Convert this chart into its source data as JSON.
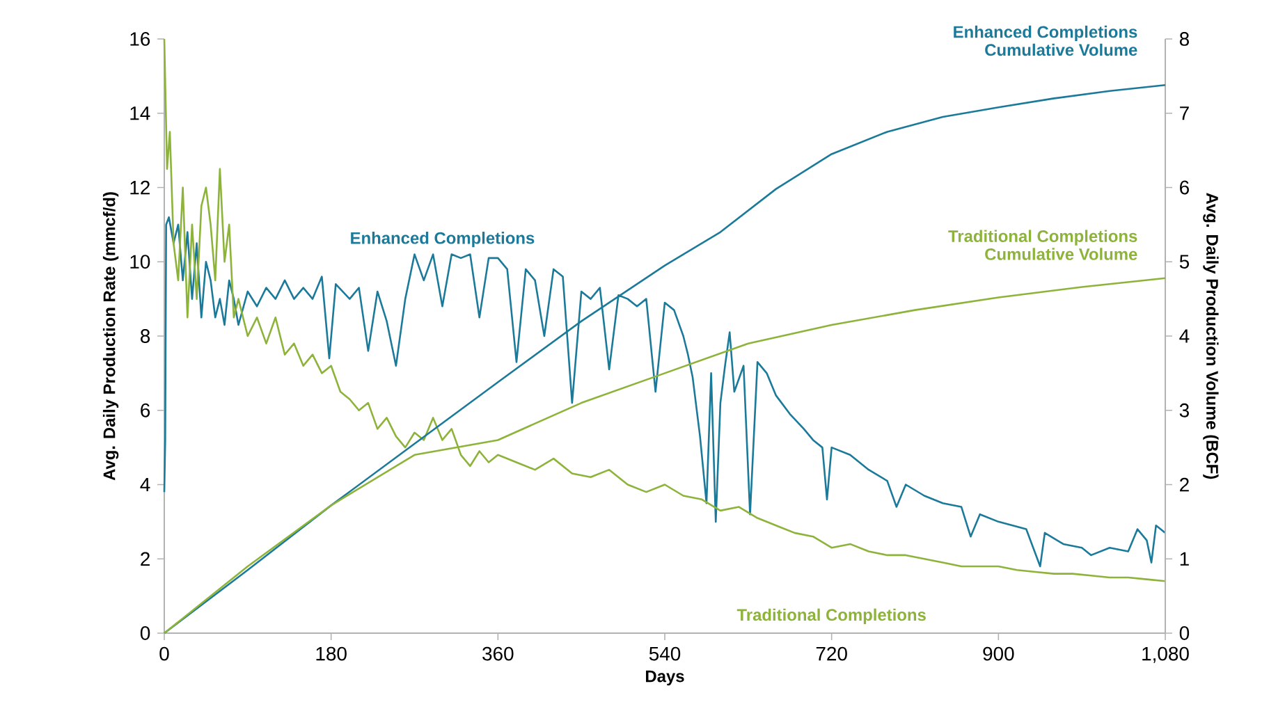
{
  "chart_data": {
    "type": "line",
    "xlabel": "Days",
    "ylabel": "Avg. Daily Production Rate (mmcf/d)",
    "y2label": "Avg. Daily Production Volume (BCF)",
    "xlim": [
      0,
      1080
    ],
    "xticks": [
      0,
      180,
      360,
      540,
      720,
      {
        "value": 1080,
        "label": "1,080"
      },
      900
    ],
    "ylim": [
      0,
      16
    ],
    "yticks": [
      0,
      2,
      4,
      6,
      8,
      10,
      12,
      14,
      16
    ],
    "y2lim": [
      0,
      8
    ],
    "y2ticks": [
      0,
      1,
      2,
      3,
      4,
      5,
      6,
      7,
      8
    ],
    "grid": false,
    "legend": false,
    "marker": "none",
    "line_style": "solid",
    "series": [
      {
        "name": "Enhanced Completions",
        "color": "#1b7a9a",
        "x": [
          0,
          1,
          2,
          5,
          10,
          15,
          20,
          25,
          30,
          35,
          40,
          45,
          50,
          55,
          60,
          65,
          70,
          75,
          80,
          90,
          100,
          110,
          120,
          130,
          140,
          150,
          160,
          170,
          178,
          185,
          200,
          210,
          220,
          230,
          240,
          250,
          260,
          270,
          280,
          290,
          300,
          310,
          320,
          330,
          340,
          350,
          360,
          370,
          380,
          390,
          400,
          410,
          420,
          430,
          440,
          450,
          460,
          470,
          480,
          490,
          500,
          510,
          520,
          530,
          540,
          550,
          560,
          565,
          570,
          578,
          585,
          590,
          595,
          600,
          605,
          610,
          615,
          625,
          632,
          640,
          650,
          660,
          675,
          690,
          700,
          710,
          715,
          720,
          740,
          760,
          780,
          790,
          800,
          820,
          840,
          860,
          870,
          880,
          900,
          930,
          945,
          950,
          970,
          990,
          1000,
          1020,
          1040,
          1050,
          1060,
          1065,
          1070,
          1080
        ],
        "values": [
          3.8,
          5.2,
          11,
          11.2,
          10.5,
          11,
          9.5,
          10.8,
          9,
          10.5,
          8.5,
          10,
          9.5,
          8.5,
          9,
          8.3,
          9.5,
          9,
          8.3,
          9.2,
          8.8,
          9.3,
          9,
          9.5,
          9,
          9.3,
          9,
          9.6,
          7.4,
          9.4,
          9,
          9.3,
          7.6,
          9.2,
          8.4,
          7.2,
          9,
          10.2,
          9.5,
          10.2,
          8.8,
          10.2,
          10.1,
          10.2,
          8.5,
          10.1,
          10.1,
          9.8,
          7.3,
          9.8,
          9.5,
          8,
          9.8,
          9.6,
          6.2,
          9.2,
          9,
          9.3,
          7.1,
          9.1,
          9,
          8.8,
          9,
          6.5,
          8.9,
          8.7,
          8,
          7.5,
          6.9,
          5.3,
          3.5,
          7,
          3,
          6.2,
          7.2,
          8.1,
          6.5,
          7.2,
          3.2,
          7.3,
          7,
          6.4,
          5.9,
          5.5,
          5.2,
          5,
          3.6,
          5,
          4.8,
          4.4,
          4.1,
          3.4,
          4,
          3.7,
          3.5,
          3.4,
          2.6,
          3.2,
          3,
          2.8,
          1.8,
          2.7,
          2.4,
          2.3,
          2.1,
          2.3,
          2.2,
          2.8,
          2.5,
          1.9,
          2.9,
          2.7
        ]
      },
      {
        "name": "Traditional Completions",
        "color": "#8db33a",
        "x": [
          0,
          3,
          6,
          10,
          15,
          20,
          25,
          30,
          35,
          40,
          45,
          50,
          55,
          60,
          65,
          70,
          75,
          80,
          90,
          100,
          110,
          120,
          130,
          140,
          150,
          160,
          170,
          180,
          190,
          200,
          210,
          220,
          230,
          240,
          250,
          260,
          270,
          280,
          290,
          300,
          310,
          320,
          330,
          340,
          350,
          360,
          380,
          400,
          420,
          440,
          460,
          480,
          500,
          520,
          540,
          560,
          580,
          600,
          620,
          640,
          660,
          680,
          700,
          720,
          740,
          760,
          780,
          800,
          820,
          840,
          860,
          880,
          900,
          920,
          940,
          960,
          980,
          1000,
          1020,
          1040,
          1060,
          1080
        ],
        "values": [
          16,
          12.5,
          13.5,
          10.5,
          9.5,
          12,
          8.5,
          11,
          9,
          11.5,
          12,
          11,
          9.5,
          12.5,
          10,
          11,
          8.5,
          9,
          8,
          8.5,
          7.8,
          8.5,
          7.5,
          7.8,
          7.2,
          7.5,
          7,
          7.2,
          6.5,
          6.3,
          6,
          6.2,
          5.5,
          5.8,
          5.3,
          5,
          5.4,
          5.2,
          5.8,
          5.2,
          5.5,
          4.8,
          4.5,
          4.9,
          4.6,
          4.8,
          4.6,
          4.4,
          4.7,
          4.3,
          4.2,
          4.4,
          4,
          3.8,
          4,
          3.7,
          3.6,
          3.3,
          3.4,
          3.1,
          2.9,
          2.7,
          2.6,
          2.3,
          2.4,
          2.2,
          2.1,
          2.1,
          2,
          1.9,
          1.8,
          1.8,
          1.8,
          1.7,
          1.65,
          1.6,
          1.6,
          1.55,
          1.5,
          1.5,
          1.45,
          1.4
        ]
      },
      {
        "name": "Enhanced Completions Cumulative Volume",
        "color": "#1b7a9a",
        "axis": "y2",
        "x": [
          0,
          90,
          180,
          270,
          360,
          450,
          540,
          600,
          660,
          720,
          780,
          840,
          900,
          960,
          1020,
          1080
        ],
        "values": [
          0,
          0.85,
          1.72,
          2.55,
          3.38,
          4.2,
          4.95,
          5.4,
          5.98,
          6.45,
          6.75,
          6.95,
          7.08,
          7.2,
          7.3,
          7.38
        ]
      },
      {
        "name": "Traditional Completions Cumulative Volume",
        "color": "#8db33a",
        "axis": "y2",
        "x": [
          0,
          90,
          180,
          270,
          360,
          450,
          540,
          630,
          720,
          810,
          900,
          990,
          1080
        ],
        "values": [
          0,
          0.9,
          1.72,
          2.4,
          2.6,
          3.1,
          3.5,
          3.9,
          4.15,
          4.35,
          4.52,
          4.66,
          4.78
        ]
      }
    ]
  }
}
